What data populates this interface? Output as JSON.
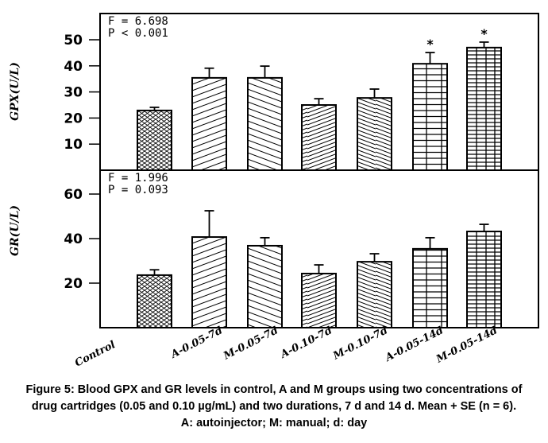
{
  "chart_data": [
    {
      "type": "bar",
      "panel": "top",
      "ylabel": "GPX(U/L)",
      "xlabel": "",
      "categories": [
        "Control",
        "A-0.05-7d",
        "M-0.05-7d",
        "A-0.10-7d",
        "M-0.10-7d",
        "A-0.05-14d",
        "M-0.05-14d"
      ],
      "values": [
        22.9,
        35.4,
        35.4,
        25.0,
        27.7,
        40.8,
        47.0
      ],
      "error_upper": [
        24.1,
        39.1,
        39.9,
        27.4,
        31.1,
        45.1,
        49.1
      ],
      "significance": [
        "",
        "",
        "",
        "",
        "",
        "*",
        "*"
      ],
      "patterns": [
        "crosshatch",
        "diag-up-wide",
        "diag-down-wide",
        "diag-up-dense",
        "diag-down-dense",
        "grid-wide",
        "grid-dense"
      ],
      "yticks": [
        10,
        20,
        30,
        40,
        50
      ],
      "ylim": [
        0,
        60.5
      ],
      "stats": [
        "F = 6.698",
        "P < 0.001"
      ],
      "grid": false,
      "legend": "none"
    },
    {
      "type": "bar",
      "panel": "bottom",
      "ylabel": "GR(U/L)",
      "xlabel": "",
      "categories": [
        "Control",
        "A-0.05-7d",
        "M-0.05-7d",
        "A-0.10-7d",
        "M-0.10-7d",
        "A-0.05-14d",
        "M-0.05-14d"
      ],
      "values": [
        23.6,
        40.7,
        36.8,
        24.3,
        29.6,
        35.4,
        43.2
      ],
      "error_upper": [
        26.0,
        52.5,
        40.4,
        28.2,
        33.2,
        40.4,
        46.4
      ],
      "significance": [
        "",
        "",
        "",
        "",
        "",
        "",
        ""
      ],
      "patterns": [
        "crosshatch",
        "diag-up-wide",
        "diag-down-wide",
        "diag-up-dense",
        "diag-down-dense",
        "grid-wide",
        "grid-dense"
      ],
      "yticks": [
        20,
        40,
        60
      ],
      "ylim": [
        0,
        70
      ],
      "stats": [
        "F = 1.996",
        "P = 0.093"
      ],
      "grid": false,
      "legend": "none"
    }
  ],
  "caption": {
    "lines": [
      "Figure 5:  Blood GPX and GR levels in control, A and M groups using two concentrations of",
      "drug cartridges (0.05 and 0.10 µg/mL) and two durations, 7 d and 14 d. Mean + SE (n = 6).",
      "A: autoinjector; M: manual; d: day"
    ]
  }
}
